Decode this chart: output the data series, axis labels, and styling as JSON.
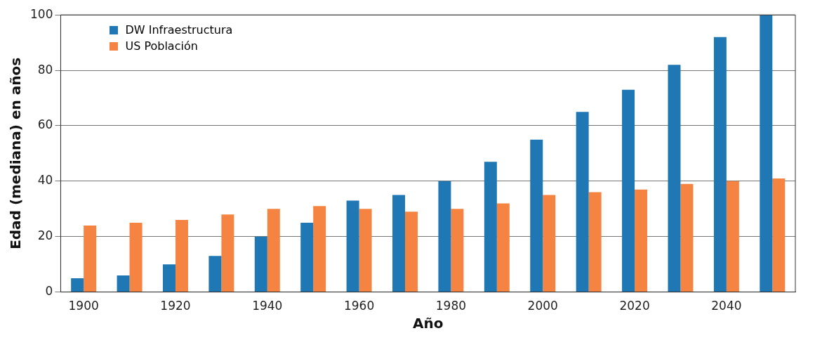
{
  "chart_data": {
    "type": "bar",
    "xlabel": "Año",
    "ylabel": "Edad (mediana) en años",
    "categories": [
      "1900",
      null,
      "1920",
      null,
      "1940",
      null,
      "1960",
      null,
      "1980",
      null,
      "2000",
      null,
      "2020",
      null,
      "2040",
      null
    ],
    "series": [
      {
        "name": "DW Infraestructura",
        "color": "#1f77b4",
        "values": [
          5,
          6,
          10,
          13,
          20,
          25,
          33,
          35,
          40,
          47,
          55,
          65,
          73,
          82,
          92,
          100
        ]
      },
      {
        "name": "US Población",
        "color": "#f58442",
        "values": [
          24,
          25,
          26,
          28,
          30,
          31,
          30,
          29,
          30,
          32,
          35,
          36,
          37,
          39,
          40,
          41
        ]
      }
    ],
    "ylim": [
      0,
      100
    ],
    "yticks": [
      0,
      20,
      40,
      60,
      80,
      100
    ],
    "grid": "y",
    "legend": "top left"
  }
}
